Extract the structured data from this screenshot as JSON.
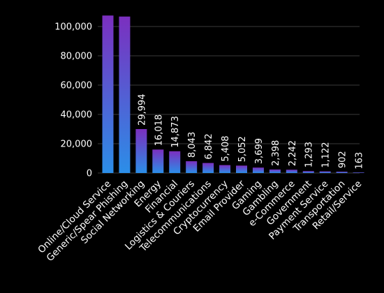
{
  "chart_data": {
    "type": "bar",
    "title": "",
    "xlabel": "",
    "ylabel": "",
    "ylim": [
      0,
      110000
    ],
    "yticks": [
      0,
      20000,
      40000,
      60000,
      80000,
      100000
    ],
    "ytick_labels": [
      "0",
      "20,000",
      "40,000",
      "60,000",
      "80,000",
      "100,000"
    ],
    "grid": true,
    "categories": [
      "Online/Cloud Service",
      "Generic/Spear Phishing",
      "Social Networking",
      "Energy",
      "Financial",
      "Logistics & Couriers",
      "Telecommunications",
      "Cryptocurrency",
      "Email Provider",
      "Gaming",
      "Gambling",
      "e-Commerce",
      "Government",
      "Payment Service",
      "Transportation",
      "Retail/Service"
    ],
    "values": [
      107500,
      106800,
      29994,
      16018,
      14873,
      8043,
      6842,
      5408,
      5052,
      3699,
      2398,
      2242,
      1293,
      1122,
      902,
      163
    ],
    "data_labels": [
      "",
      "",
      "29,994",
      "16,018",
      "14,873",
      "8,043",
      "6,842",
      "5,408",
      "5,052",
      "3,699",
      "2,398",
      "2,242",
      "1,293",
      "1,122",
      "902",
      "163"
    ],
    "colors": {
      "bar_top": "#7b2fbf",
      "bar_bottom": "#2b8ee8",
      "grid": "#3a3a3a",
      "text": "#ffffff",
      "background": "#000000"
    }
  }
}
